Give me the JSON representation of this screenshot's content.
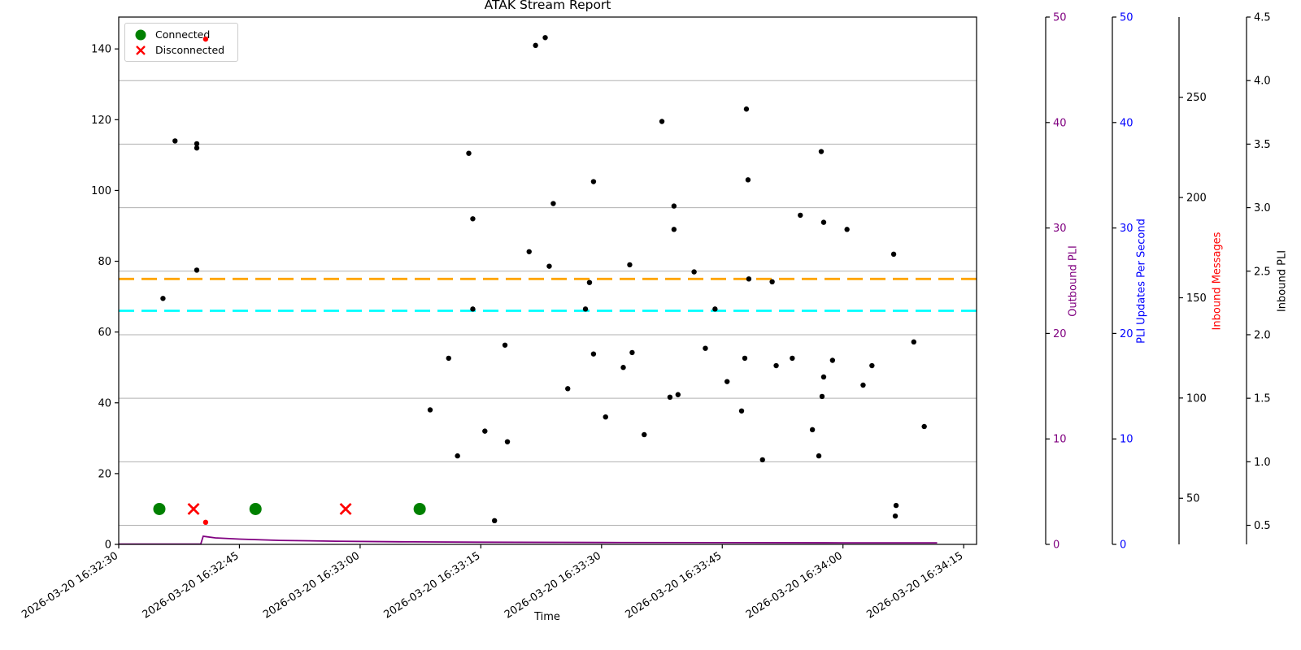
{
  "title": "ATAK Stream Report",
  "xlabel": "Time",
  "legend": {
    "connected": "Connected",
    "disconnected": "Disconnected"
  },
  "colors": {
    "scatter": "#000000",
    "connected_marker": "#008000",
    "disconnected_marker": "#ff0000",
    "outbound_line": "#800080",
    "inbound_messages_dots": "#ff0000",
    "hline_upper": "#ffa500",
    "hline_lower": "#00ffff",
    "grid": "#b0b0b0",
    "spine": "#000000"
  },
  "chart_data": {
    "type": "scatter",
    "title": "ATAK Stream Report",
    "xlabel": "Time",
    "grid": "on (horizontal, from Inbound PLI axis ticks)",
    "legend_position": "upper left",
    "x_tick_labels": [
      "2026-03-20 16:32:30",
      "2026-03-20 16:32:45",
      "2026-03-20 16:33:00",
      "2026-03-20 16:33:15",
      "2026-03-20 16:33:30",
      "2026-03-20 16:33:45",
      "2026-03-20 16:34:00",
      "2026-03-20 16:34:15"
    ],
    "x_tick_seconds": [
      0,
      15,
      30,
      45,
      60,
      75,
      90,
      105
    ],
    "x_range_seconds": [
      0,
      106.6
    ],
    "axes": [
      {
        "id": "main_left",
        "label": "",
        "side": "left",
        "ticks": [
          0,
          20,
          40,
          60,
          80,
          100,
          120,
          140
        ],
        "range": [
          0,
          149
        ],
        "tick_color": "#000000",
        "label_color": "#000000"
      },
      {
        "id": "outbound_pli",
        "label": "Outbound PLI",
        "side": "right",
        "ticks": [
          0,
          10,
          20,
          30,
          40,
          50
        ],
        "range": [
          0,
          50
        ],
        "tick_color": "#800080",
        "label_color": "#800080"
      },
      {
        "id": "pli_updates",
        "label": "PLI Updates Per Second",
        "side": "right",
        "ticks": [
          0,
          10,
          20,
          30,
          40,
          50
        ],
        "range": [
          0,
          50
        ],
        "tick_color": "#0000ff",
        "label_color": "#0000ff"
      },
      {
        "id": "inbound_messages",
        "label": "Inbound Messages",
        "side": "right",
        "ticks": [
          50,
          100,
          150,
          200,
          250
        ],
        "range": [
          27,
          290
        ],
        "tick_color": "#000000",
        "label_color": "#ff0000"
      },
      {
        "id": "inbound_pli",
        "label": "Inbound PLI",
        "side": "right",
        "ticks": [
          0.5,
          1.0,
          1.5,
          2.0,
          2.5,
          3.0,
          3.5,
          4.0,
          4.5
        ],
        "range": [
          0.35,
          4.5
        ],
        "tick_color": "#000000",
        "label_color": "#000000"
      }
    ],
    "gridline_values_inbound_pli": [
      0.5,
      1.0,
      1.5,
      2.0,
      2.5,
      3.0,
      3.5,
      4.0,
      4.5
    ],
    "hlines": [
      {
        "axis": "main_left",
        "value": 75,
        "color": "#ffa500",
        "style": "dashed"
      },
      {
        "axis": "main_left",
        "value": 66,
        "color": "#00ffff",
        "style": "dashed"
      }
    ],
    "series": [
      {
        "name": "stream_values",
        "type": "scatter",
        "axis": "main_left",
        "color": "#000000",
        "points": [
          [
            5.5,
            69.5
          ],
          [
            7,
            114
          ],
          [
            9.7,
            113.2
          ],
          [
            9.7,
            112
          ],
          [
            9.7,
            77.5
          ],
          [
            38.7,
            38
          ],
          [
            41,
            52.6
          ],
          [
            42.1,
            25
          ],
          [
            43.5,
            110.5
          ],
          [
            44,
            92
          ],
          [
            44,
            66.5
          ],
          [
            45.5,
            32
          ],
          [
            46.7,
            6.7
          ],
          [
            48,
            56.3
          ],
          [
            48.3,
            29
          ],
          [
            51,
            82.7
          ],
          [
            51.8,
            141
          ],
          [
            53,
            143.2
          ],
          [
            53.5,
            78.6
          ],
          [
            54,
            96.3
          ],
          [
            55.8,
            44
          ],
          [
            58,
            66.5
          ],
          [
            58.5,
            74
          ],
          [
            59,
            102.5
          ],
          [
            59,
            53.8
          ],
          [
            60.5,
            36
          ],
          [
            62.7,
            50
          ],
          [
            63.5,
            79
          ],
          [
            63.8,
            54.2
          ],
          [
            65.3,
            31
          ],
          [
            67.5,
            119.5
          ],
          [
            68.5,
            41.6
          ],
          [
            69,
            95.6
          ],
          [
            69,
            89
          ],
          [
            69.5,
            42.3
          ],
          [
            71.5,
            77
          ],
          [
            72.9,
            55.4
          ],
          [
            74.1,
            66.5
          ],
          [
            75.6,
            46
          ],
          [
            77.4,
            37.7
          ],
          [
            77.8,
            52.6
          ],
          [
            78,
            123
          ],
          [
            78.2,
            103
          ],
          [
            78.3,
            75
          ],
          [
            80,
            23.9
          ],
          [
            81.2,
            74.2
          ],
          [
            81.7,
            50.5
          ],
          [
            83.7,
            52.6
          ],
          [
            84.7,
            93
          ],
          [
            86.2,
            32.4
          ],
          [
            87,
            25
          ],
          [
            87.3,
            111
          ],
          [
            87.4,
            41.8
          ],
          [
            87.6,
            91
          ],
          [
            87.6,
            47.3
          ],
          [
            88.7,
            52
          ],
          [
            90.5,
            89
          ],
          [
            92.5,
            45
          ],
          [
            93.6,
            50.5
          ],
          [
            96.3,
            82
          ],
          [
            96.5,
            8
          ],
          [
            96.6,
            11
          ],
          [
            98.8,
            57.2
          ],
          [
            100.1,
            33.3
          ]
        ]
      },
      {
        "name": "connected_events",
        "type": "marker-circle",
        "axis": "main_left",
        "color": "#008000",
        "y_value": 10,
        "times": [
          5.05,
          17,
          37.4
        ]
      },
      {
        "name": "disconnected_events",
        "type": "marker-x",
        "axis": "main_left",
        "color": "#ff0000",
        "y_value": 10,
        "times": [
          9.3,
          28.2
        ]
      },
      {
        "name": "inbound_messages_points",
        "type": "scatter",
        "axis": "inbound_messages",
        "color": "#ff0000",
        "points": [
          [
            10.8,
            279
          ],
          [
            10.8,
            38
          ]
        ]
      },
      {
        "name": "outbound_pli_line",
        "type": "line",
        "axis": "outbound_pli",
        "color": "#800080",
        "points": [
          [
            0,
            0.03
          ],
          [
            10.2,
            0.03
          ],
          [
            10.5,
            0.77
          ],
          [
            12,
            0.62
          ],
          [
            15,
            0.5
          ],
          [
            20,
            0.38
          ],
          [
            27,
            0.3
          ],
          [
            35,
            0.25
          ],
          [
            45,
            0.21
          ],
          [
            60,
            0.18
          ],
          [
            75,
            0.16
          ],
          [
            90,
            0.15
          ],
          [
            101.7,
            0.15
          ]
        ]
      }
    ]
  }
}
